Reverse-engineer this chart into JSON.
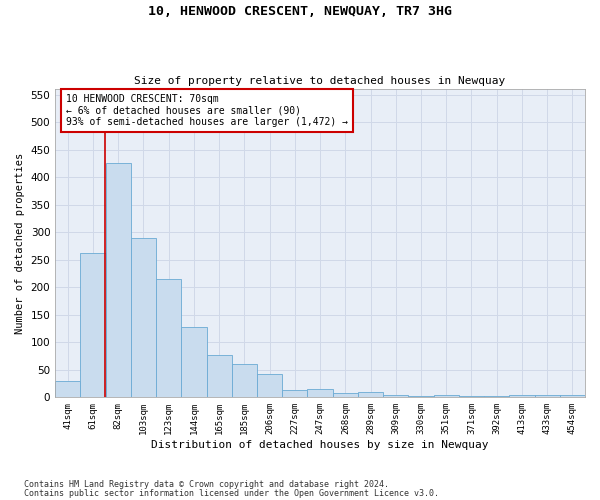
{
  "title": "10, HENWOOD CRESCENT, NEWQUAY, TR7 3HG",
  "subtitle": "Size of property relative to detached houses in Newquay",
  "xlabel": "Distribution of detached houses by size in Newquay",
  "ylabel": "Number of detached properties",
  "bar_labels": [
    "41sqm",
    "61sqm",
    "82sqm",
    "103sqm",
    "123sqm",
    "144sqm",
    "165sqm",
    "185sqm",
    "206sqm",
    "227sqm",
    "247sqm",
    "268sqm",
    "289sqm",
    "309sqm",
    "330sqm",
    "351sqm",
    "371sqm",
    "392sqm",
    "413sqm",
    "433sqm",
    "454sqm"
  ],
  "bar_values": [
    30,
    263,
    425,
    290,
    215,
    128,
    77,
    60,
    42,
    13,
    15,
    8,
    10,
    5,
    2,
    4,
    3,
    2,
    5,
    4,
    4
  ],
  "bar_color": "#c9dcee",
  "bar_edge_color": "#6aaad4",
  "grid_color": "#d0d8e8",
  "background_color": "#e8eef7",
  "annotation_text": "10 HENWOOD CRESCENT: 70sqm\n← 6% of detached houses are smaller (90)\n93% of semi-detached houses are larger (1,472) →",
  "annotation_box_color": "#ffffff",
  "annotation_box_edge": "#cc0000",
  "vline_color": "#cc0000",
  "ylim": [
    0,
    560
  ],
  "yticks": [
    0,
    50,
    100,
    150,
    200,
    250,
    300,
    350,
    400,
    450,
    500,
    550
  ],
  "footer1": "Contains HM Land Registry data © Crown copyright and database right 2024.",
  "footer2": "Contains public sector information licensed under the Open Government Licence v3.0."
}
